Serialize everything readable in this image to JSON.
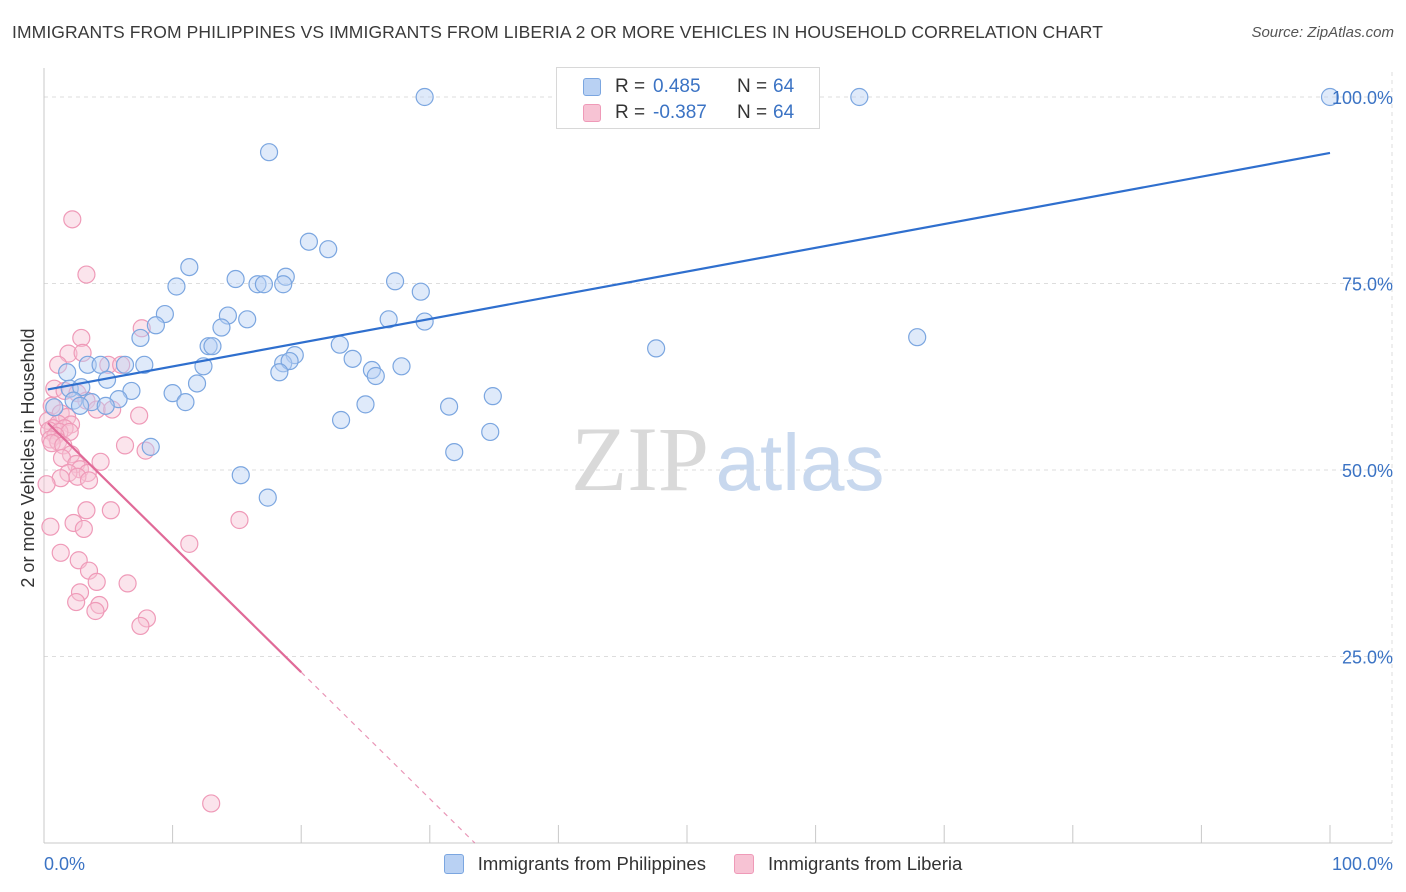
{
  "header": {
    "title": "IMMIGRANTS FROM PHILIPPINES VS IMMIGRANTS FROM LIBERIA 2 OR MORE VEHICLES IN HOUSEHOLD CORRELATION CHART",
    "source": "Source: ZipAtlas.com"
  },
  "watermark": {
    "zip": "ZIP",
    "atlas": "atlas"
  },
  "legend_top": {
    "rows": [
      {
        "r_label": "R =",
        "r_value": "0.485",
        "n_label": "N =",
        "n_value": "64"
      },
      {
        "r_label": "R =",
        "r_value": "-0.387",
        "n_label": "N =",
        "n_value": "64"
      }
    ]
  },
  "colors": {
    "blue_fill": "#b9d1f3",
    "blue_stroke": "#7ba6e0",
    "blue_line": "#2f6fce",
    "pink_fill": "#f7c3d4",
    "pink_stroke": "#ef9ab8",
    "pink_line": "#e06a98",
    "axis_text": "#3b73c4",
    "grid": "#dddddd"
  },
  "chart_data": {
    "type": "scatter",
    "title": "IMMIGRANTS FROM PHILIPPINES VS IMMIGRANTS FROM LIBERIA 2 OR MORE VEHICLES IN HOUSEHOLD CORRELATION CHART",
    "xlabel": "",
    "ylabel": "2 or more Vehicles in Household",
    "xlim": [
      0,
      100
    ],
    "ylim": [
      0,
      102
    ],
    "x_tick_labels": [
      "0.0%",
      "100.0%"
    ],
    "y_ticks": [
      25,
      50,
      75,
      100
    ],
    "y_tick_labels": [
      "25.0%",
      "50.0%",
      "75.0%",
      "100.0%"
    ],
    "legend": [
      "Immigrants from Philippines",
      "Immigrants from Liberia"
    ],
    "series": [
      {
        "name": "Immigrants from Philippines",
        "r": 0.485,
        "n": 64,
        "trend": {
          "x": [
            0.3,
            100
          ],
          "y": [
            60.8,
            92.5
          ]
        },
        "points": [
          [
            29.6,
            100
          ],
          [
            63.4,
            100
          ],
          [
            100,
            100
          ],
          [
            17.5,
            92.6
          ],
          [
            20.6,
            80.6
          ],
          [
            22.1,
            79.6
          ],
          [
            11.3,
            77.2
          ],
          [
            18.8,
            75.9
          ],
          [
            10.3,
            74.6
          ],
          [
            14.9,
            75.6
          ],
          [
            16.6,
            74.9
          ],
          [
            17.1,
            74.9
          ],
          [
            18.6,
            74.9
          ],
          [
            27.3,
            75.3
          ],
          [
            29.3,
            73.9
          ],
          [
            9.4,
            70.9
          ],
          [
            14.3,
            70.7
          ],
          [
            15.8,
            70.2
          ],
          [
            26.8,
            70.2
          ],
          [
            8.7,
            69.4
          ],
          [
            13.8,
            69.1
          ],
          [
            29.6,
            69.9
          ],
          [
            7.5,
            67.7
          ],
          [
            67.9,
            67.8
          ],
          [
            12.8,
            66.6
          ],
          [
            13.1,
            66.6
          ],
          [
            23.0,
            66.8
          ],
          [
            47.6,
            66.3
          ],
          [
            19.5,
            65.4
          ],
          [
            18.6,
            64.3
          ],
          [
            19.1,
            64.6
          ],
          [
            24.0,
            64.9
          ],
          [
            3.4,
            64.1
          ],
          [
            4.4,
            64.1
          ],
          [
            6.3,
            64.1
          ],
          [
            7.8,
            64.1
          ],
          [
            12.4,
            63.9
          ],
          [
            25.5,
            63.4
          ],
          [
            27.8,
            63.9
          ],
          [
            1.8,
            63.1
          ],
          [
            18.3,
            63.1
          ],
          [
            25.8,
            62.6
          ],
          [
            4.9,
            62.1
          ],
          [
            11.9,
            61.6
          ],
          [
            2.0,
            60.9
          ],
          [
            2.9,
            61.1
          ],
          [
            6.8,
            60.6
          ],
          [
            10.0,
            60.3
          ],
          [
            34.9,
            59.9
          ],
          [
            2.3,
            59.3
          ],
          [
            3.7,
            59.1
          ],
          [
            5.8,
            59.5
          ],
          [
            11.0,
            59.1
          ],
          [
            2.8,
            58.6
          ],
          [
            4.8,
            58.6
          ],
          [
            25.0,
            58.8
          ],
          [
            31.5,
            58.5
          ],
          [
            23.1,
            56.7
          ],
          [
            34.7,
            55.1
          ],
          [
            8.3,
            53.1
          ],
          [
            31.9,
            52.4
          ],
          [
            15.3,
            49.3
          ],
          [
            17.4,
            46.3
          ],
          [
            0.8,
            58.4
          ]
        ]
      },
      {
        "name": "Immigrants from Liberia",
        "r": -0.387,
        "n": 64,
        "trend": {
          "x": [
            0.3,
            20
          ],
          "y": [
            56.3,
            22.9
          ]
        },
        "trend_dashed": {
          "x": [
            20,
            33.5
          ],
          "y": [
            22.9,
            0
          ]
        },
        "points": [
          [
            2.2,
            83.6
          ],
          [
            3.3,
            76.2
          ],
          [
            2.9,
            67.7
          ],
          [
            1.9,
            65.6
          ],
          [
            3.0,
            65.7
          ],
          [
            7.6,
            69.0
          ],
          [
            1.1,
            64.1
          ],
          [
            5.0,
            64.1
          ],
          [
            6.0,
            64.1
          ],
          [
            0.8,
            60.9
          ],
          [
            1.6,
            60.6
          ],
          [
            2.6,
            60.3
          ],
          [
            3.3,
            59.3
          ],
          [
            0.6,
            58.6
          ],
          [
            4.1,
            58.1
          ],
          [
            5.3,
            58.1
          ],
          [
            1.3,
            57.6
          ],
          [
            1.8,
            57.1
          ],
          [
            7.4,
            57.3
          ],
          [
            0.3,
            56.6
          ],
          [
            1.1,
            56.2
          ],
          [
            2.1,
            56.1
          ],
          [
            0.7,
            55.6
          ],
          [
            1.6,
            55.6
          ],
          [
            0.4,
            55.3
          ],
          [
            1.2,
            55.1
          ],
          [
            2.0,
            55.1
          ],
          [
            0.9,
            54.6
          ],
          [
            0.5,
            54.1
          ],
          [
            1.1,
            53.8
          ],
          [
            0.6,
            53.6
          ],
          [
            1.5,
            53.3
          ],
          [
            6.3,
            53.3
          ],
          [
            7.9,
            52.6
          ],
          [
            2.1,
            52.1
          ],
          [
            4.4,
            51.1
          ],
          [
            1.4,
            51.6
          ],
          [
            2.5,
            50.8
          ],
          [
            2.8,
            50.1
          ],
          [
            1.9,
            49.6
          ],
          [
            3.4,
            49.6
          ],
          [
            2.6,
            49.1
          ],
          [
            1.3,
            48.9
          ],
          [
            3.5,
            48.6
          ],
          [
            0.2,
            48.1
          ],
          [
            3.3,
            44.6
          ],
          [
            5.2,
            44.6
          ],
          [
            0.5,
            42.4
          ],
          [
            2.3,
            42.9
          ],
          [
            3.1,
            42.1
          ],
          [
            15.2,
            43.3
          ],
          [
            11.3,
            40.1
          ],
          [
            1.3,
            38.9
          ],
          [
            2.7,
            37.9
          ],
          [
            3.5,
            36.5
          ],
          [
            4.1,
            35.0
          ],
          [
            6.5,
            34.8
          ],
          [
            2.8,
            33.6
          ],
          [
            2.5,
            32.3
          ],
          [
            4.3,
            31.9
          ],
          [
            4.0,
            31.1
          ],
          [
            8.0,
            30.1
          ],
          [
            7.5,
            29.1
          ],
          [
            13.0,
            5.3
          ]
        ]
      }
    ]
  }
}
